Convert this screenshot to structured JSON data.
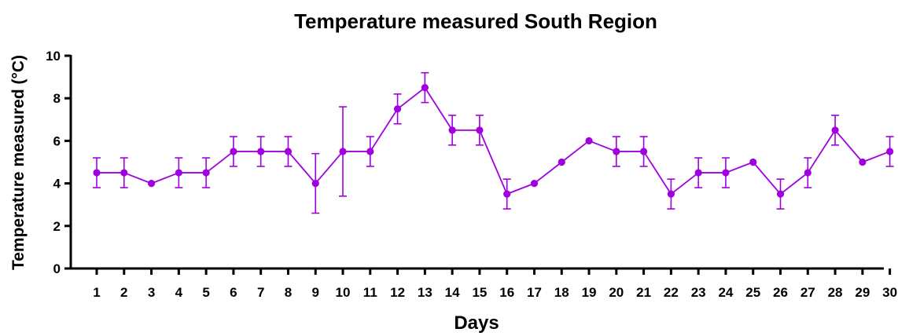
{
  "chart_data": {
    "type": "line",
    "title": "Temperature measured South Region",
    "xlabel": "Days",
    "ylabel": "Temperature measured (°C)",
    "ylim": [
      0,
      10
    ],
    "yticks": [
      0,
      2,
      4,
      6,
      8,
      10
    ],
    "grid": false,
    "legend": "none",
    "color": "#A000E0",
    "x": [
      1,
      2,
      3,
      4,
      5,
      6,
      7,
      8,
      9,
      10,
      11,
      12,
      13,
      14,
      15,
      16,
      17,
      18,
      19,
      20,
      21,
      22,
      23,
      24,
      25,
      26,
      27,
      28,
      29,
      30
    ],
    "y": [
      4.5,
      4.5,
      4.0,
      4.5,
      4.5,
      5.5,
      5.5,
      5.5,
      4.0,
      5.5,
      5.5,
      7.5,
      8.5,
      6.5,
      6.5,
      3.5,
      4.0,
      5.0,
      6.0,
      5.5,
      5.5,
      3.5,
      4.5,
      4.5,
      5.0,
      3.5,
      4.5,
      6.5,
      5.0,
      5.5
    ],
    "error": [
      0.7,
      0.7,
      0,
      0.7,
      0.7,
      0.7,
      0.7,
      0.7,
      1.4,
      2.1,
      0.7,
      0.7,
      0.7,
      0.7,
      0.7,
      0.7,
      0,
      0,
      0,
      0.7,
      0.7,
      0.7,
      0.7,
      0.7,
      0,
      0.7,
      0.7,
      0.7,
      0,
      0.7
    ]
  }
}
